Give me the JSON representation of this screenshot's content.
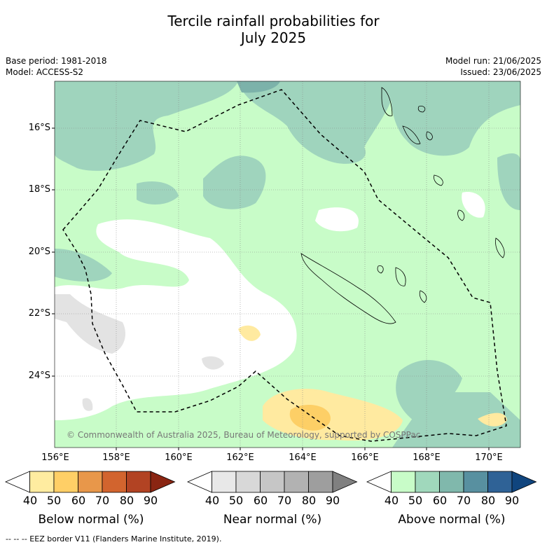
{
  "title_line1": "Tercile rainfall probabilities for",
  "title_line2": "July 2025",
  "meta_left": {
    "base_period": "Base period: 1981-2018",
    "model": "Model: ACCESS-S2"
  },
  "meta_right": {
    "model_run": "Model run: 21/06/2025",
    "issued": "Issued: 23/06/2025"
  },
  "latitude_labels": [
    "16°S",
    "18°S",
    "20°S",
    "22°S",
    "24°S"
  ],
  "longitude_labels": [
    "156°E",
    "158°E",
    "160°E",
    "162°E",
    "164°E",
    "166°E",
    "168°E",
    "170°E"
  ],
  "copyright": "© Commonwealth of Australia 2025, Bureau of Meteorology, supported by COSPPac",
  "colorbars": [
    {
      "title": "Below normal (%)",
      "ticks": [
        "40",
        "50",
        "60",
        "70",
        "80",
        "90"
      ],
      "colors": [
        "#ffffff",
        "#ffeca0",
        "#ffcf66",
        "#e8974a",
        "#d2642e",
        "#b24323",
        "#8a2512"
      ]
    },
    {
      "title": "Near normal (%)",
      "ticks": [
        "40",
        "50",
        "60",
        "70",
        "80",
        "90"
      ],
      "colors": [
        "#ffffff",
        "#e8e8e8",
        "#d8d8d8",
        "#c6c6c6",
        "#b2b2b2",
        "#9e9e9e",
        "#808080"
      ]
    },
    {
      "title": "Above normal (%)",
      "ticks": [
        "40",
        "50",
        "60",
        "70",
        "80",
        "90"
      ],
      "colors": [
        "#ffffff",
        "#c8fcc8",
        "#a0d8bc",
        "#80b8ac",
        "#5890a0",
        "#2f6296",
        "#10457e"
      ]
    }
  ],
  "footer": "--  --  -- EEZ border V11 (Flanders Marine Institute, 2019).",
  "map_colors": {
    "above50": "#c8fcc8",
    "above60": "#9fd4bd",
    "above70": "#7cb2aa",
    "near50": "#e3e3e3",
    "below50": "#ffeaa0",
    "below60": "#fdcf66"
  }
}
